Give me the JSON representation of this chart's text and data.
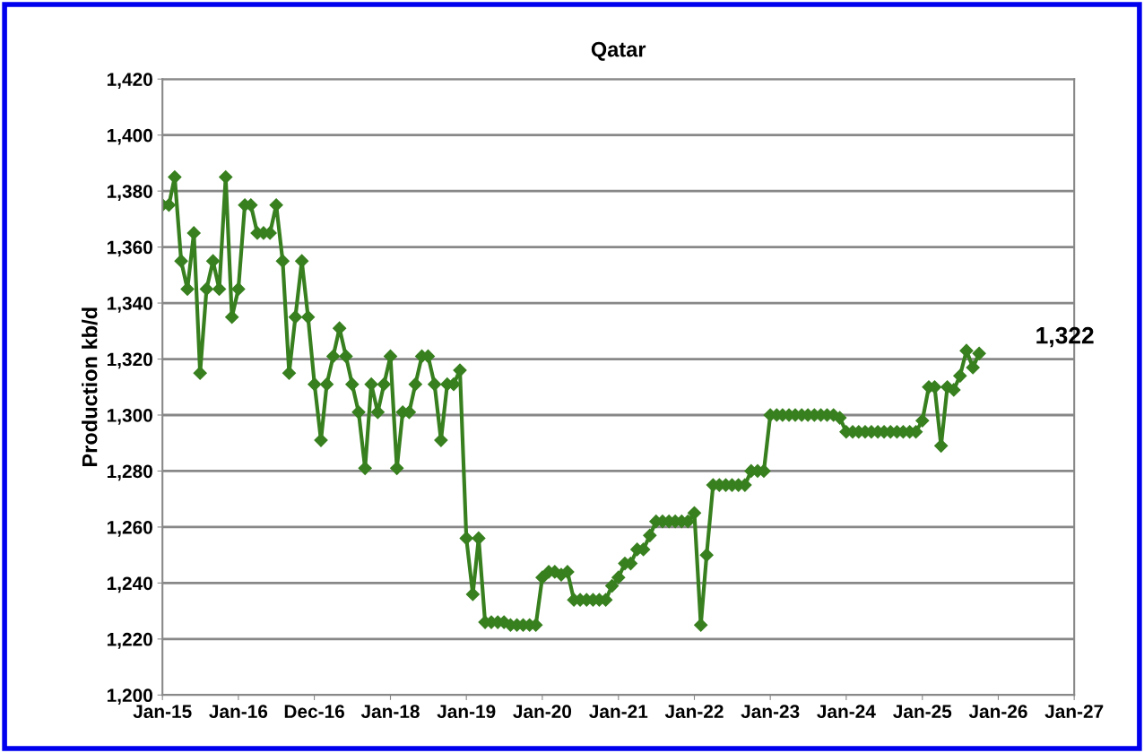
{
  "chart_data": {
    "type": "line",
    "title": "Qatar",
    "ylabel": "Production kb/d",
    "x": [
      "2015-01",
      "2015-02",
      "2015-03",
      "2015-04",
      "2015-05",
      "2015-06",
      "2015-07",
      "2015-08",
      "2015-09",
      "2015-10",
      "2015-11",
      "2015-12",
      "2016-01",
      "2016-02",
      "2016-03",
      "2016-04",
      "2016-05",
      "2016-06",
      "2016-07",
      "2016-08",
      "2016-09",
      "2016-10",
      "2016-11",
      "2016-12",
      "2017-01",
      "2017-02",
      "2017-03",
      "2017-04",
      "2017-05",
      "2017-06",
      "2017-07",
      "2017-08",
      "2017-09",
      "2017-10",
      "2017-11",
      "2017-12",
      "2018-01",
      "2018-02",
      "2018-03",
      "2018-04",
      "2018-05",
      "2018-06",
      "2018-07",
      "2018-08",
      "2018-09",
      "2018-10",
      "2018-11",
      "2018-12",
      "2019-01",
      "2019-02",
      "2019-03",
      "2019-04",
      "2019-05",
      "2019-06",
      "2019-07",
      "2019-08",
      "2019-09",
      "2019-10",
      "2019-11",
      "2019-12",
      "2020-01",
      "2020-02",
      "2020-03",
      "2020-04",
      "2020-05",
      "2020-06",
      "2020-07",
      "2020-08",
      "2020-09",
      "2020-10",
      "2020-11",
      "2020-12",
      "2021-01",
      "2021-02",
      "2021-03",
      "2021-04",
      "2021-05",
      "2021-06",
      "2021-07",
      "2021-08",
      "2021-09",
      "2021-10",
      "2021-11",
      "2021-12",
      "2022-01",
      "2022-02",
      "2022-03",
      "2022-04",
      "2022-05",
      "2022-06",
      "2022-07",
      "2022-08",
      "2022-09",
      "2022-10",
      "2022-11",
      "2022-12",
      "2023-01",
      "2023-02",
      "2023-03",
      "2023-04",
      "2023-05",
      "2023-06",
      "2023-07",
      "2023-08",
      "2023-09",
      "2023-10",
      "2023-11",
      "2023-12",
      "2024-01",
      "2024-02",
      "2024-03",
      "2024-04",
      "2024-05",
      "2024-06",
      "2024-07",
      "2024-08",
      "2024-09",
      "2024-10",
      "2024-11",
      "2024-12",
      "2025-01",
      "2025-02",
      "2025-03",
      "2025-04",
      "2025-05",
      "2025-06",
      "2025-07",
      "2025-08",
      "2025-09",
      "2025-10"
    ],
    "series": [
      {
        "color": "#38801f",
        "values": [
          1375,
          1375,
          1385,
          1355,
          1345,
          1365,
          1315,
          1345,
          1355,
          1345,
          1385,
          1335,
          1345,
          1375,
          1375,
          1365,
          1365,
          1365,
          1375,
          1355,
          1315,
          1335,
          1355,
          1335,
          1311,
          1291,
          1311,
          1321,
          1331,
          1321,
          1311,
          1301,
          1281,
          1311,
          1301,
          1311,
          1321,
          1281,
          1301,
          1301,
          1311,
          1321,
          1321,
          1311,
          1291,
          1311,
          1311,
          1316,
          1256,
          1236,
          1256,
          1226,
          1226,
          1226,
          1226,
          1225,
          1225,
          1225,
          1225,
          1225,
          1242,
          1244,
          1244,
          1243,
          1244,
          1234,
          1234,
          1234,
          1234,
          1234,
          1234,
          1239,
          1242,
          1247,
          1247,
          1252,
          1252,
          1257,
          1262,
          1262,
          1262,
          1262,
          1262,
          1262,
          1265,
          1225,
          1250,
          1275,
          1275,
          1275,
          1275,
          1275,
          1275,
          1280,
          1280,
          1280,
          1300,
          1300,
          1300,
          1300,
          1300,
          1300,
          1300,
          1300,
          1300,
          1300,
          1300,
          1299,
          1294,
          1294,
          1294,
          1294,
          1294,
          1294,
          1294,
          1294,
          1294,
          1294,
          1294,
          1294,
          1298,
          1310,
          1310,
          1289,
          1310,
          1309,
          1314,
          1323,
          1317,
          1322
        ]
      }
    ],
    "xlim": [
      "2015-01-01",
      "2027-01-01"
    ],
    "xticks": [
      {
        "value": "2015-01-01",
        "label": "Jan-15"
      },
      {
        "value": "2016-01-01",
        "label": "Jan-16"
      },
      {
        "value": "2016-12-31",
        "label": "Dec-16"
      },
      {
        "value": "2018-01-01",
        "label": "Jan-18"
      },
      {
        "value": "2019-01-01",
        "label": "Jan-19"
      },
      {
        "value": "2020-01-01",
        "label": "Jan-20"
      },
      {
        "value": "2021-01-01",
        "label": "Jan-21"
      },
      {
        "value": "2022-01-01",
        "label": "Jan-22"
      },
      {
        "value": "2023-01-01",
        "label": "Jan-23"
      },
      {
        "value": "2024-01-01",
        "label": "Jan-24"
      },
      {
        "value": "2025-01-01",
        "label": "Jan-25"
      },
      {
        "value": "2026-01-01",
        "label": "Jan-26"
      },
      {
        "value": "2027-01-01",
        "label": "Jan-27"
      }
    ],
    "ylim": [
      1200,
      1420
    ],
    "yticks": [
      {
        "value": 1200,
        "label": "1,200"
      },
      {
        "value": 1220,
        "label": "1,220"
      },
      {
        "value": 1240,
        "label": "1,240"
      },
      {
        "value": 1260,
        "label": "1,260"
      },
      {
        "value": 1280,
        "label": "1,280"
      },
      {
        "value": 1300,
        "label": "1,300"
      },
      {
        "value": 1320,
        "label": "1,320"
      },
      {
        "value": 1340,
        "label": "1,340"
      },
      {
        "value": 1360,
        "label": "1,360"
      },
      {
        "value": 1380,
        "label": "1,380"
      },
      {
        "value": 1400,
        "label": "1,400"
      },
      {
        "value": 1420,
        "label": "1,420"
      }
    ],
    "grid": "y",
    "marker": "diamond",
    "line_style": "solid",
    "annotations": [
      {
        "text": "1,322",
        "x": "2025-10",
        "y": 1322
      }
    ]
  }
}
